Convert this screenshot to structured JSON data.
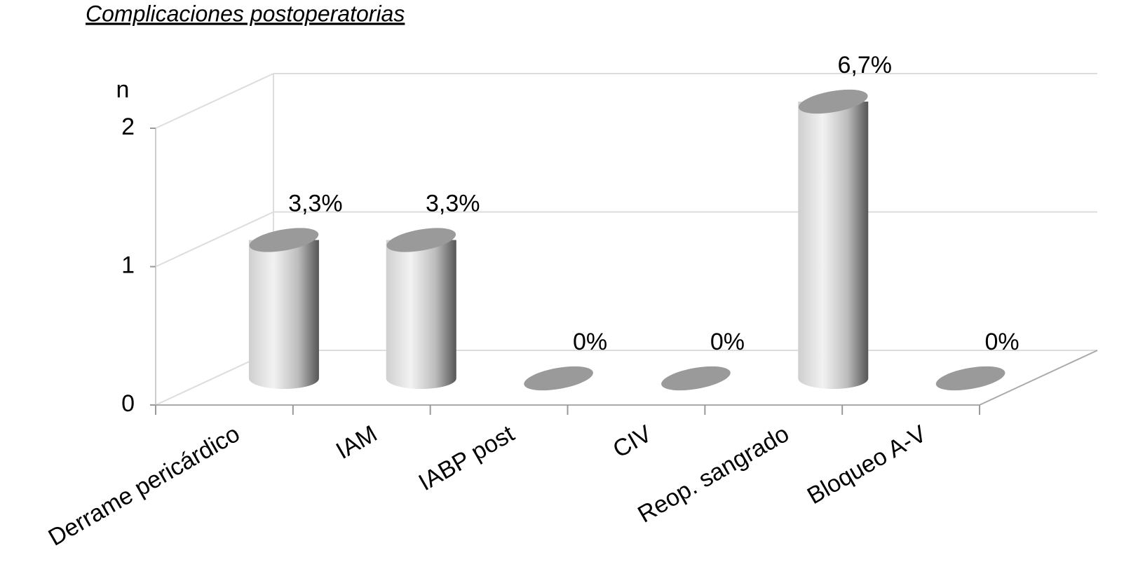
{
  "chart_data": {
    "type": "bar",
    "title": "Complicaciones postoperatorias",
    "y_label": "n",
    "categories": [
      "Derrame pericárdico",
      "IAM",
      "IABP post",
      "CIV",
      "Reop. sangrado",
      "Bloqueo A-V"
    ],
    "values": [
      1,
      1,
      0,
      0,
      2,
      0
    ],
    "percentages": {
      "values": [
        3.3,
        3.3,
        0,
        0,
        6.7,
        0
      ],
      "value_labels": [
        "3,3%",
        "3,3%",
        "0%",
        "0%",
        "6,7%",
        "0%"
      ]
    },
    "color": "#d9d9d9",
    "ylim": [
      0,
      2
    ],
    "yticks": [
      0,
      1,
      2
    ],
    "grid": true
  }
}
